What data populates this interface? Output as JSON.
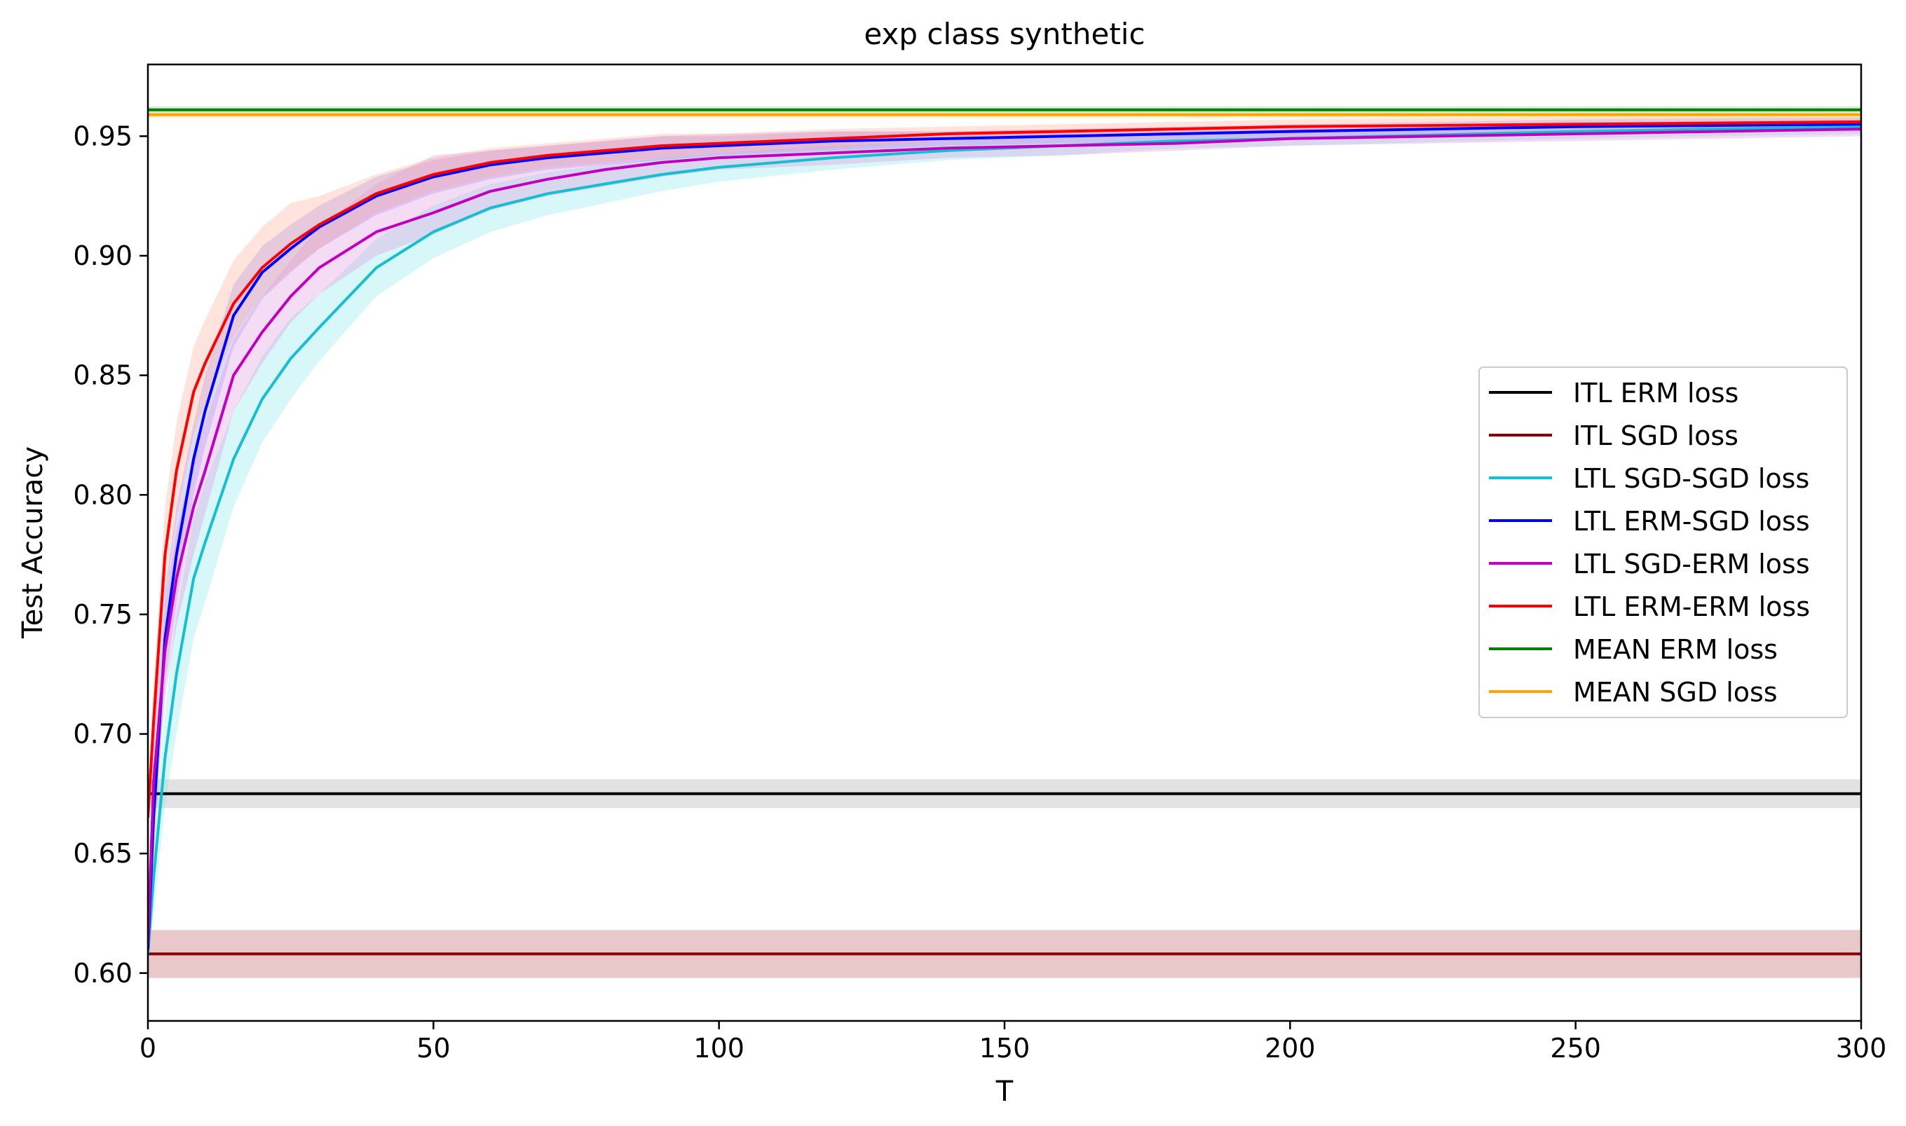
{
  "chart_data": {
    "type": "line",
    "title": "exp class synthetic",
    "xlabel": "T",
    "ylabel": "Test Accuracy",
    "xlim": [
      0,
      300
    ],
    "ylim": [
      0.58,
      0.98
    ],
    "xticks": [
      0,
      50,
      100,
      150,
      200,
      250,
      300
    ],
    "yticks": [
      0.6,
      0.65,
      0.7,
      0.75,
      0.8,
      0.85,
      0.9,
      0.95
    ],
    "xtick_labels": [
      "0",
      "50",
      "100",
      "150",
      "200",
      "250",
      "300"
    ],
    "ytick_labels": [
      "0.60",
      "0.65",
      "0.70",
      "0.75",
      "0.80",
      "0.85",
      "0.90",
      "0.95"
    ],
    "grid": false,
    "legend_position": "center-right",
    "series": [
      {
        "name": "ITL ERM loss",
        "color": "#000000",
        "band_color": "#9e9e9e",
        "x": [
          0,
          300
        ],
        "y": [
          0.675,
          0.675
        ],
        "lower": [
          0.669,
          0.669
        ],
        "upper": [
          0.681,
          0.681
        ]
      },
      {
        "name": "ITL SGD loss",
        "color": "#8b0000",
        "band_color": "#b24a4a",
        "x": [
          0,
          300
        ],
        "y": [
          0.608,
          0.608
        ],
        "lower": [
          0.598,
          0.598
        ],
        "upper": [
          0.618,
          0.618
        ]
      },
      {
        "name": "LTL SGD-SGD loss",
        "color": "#17becf",
        "band_color": "#7fe3ea",
        "x": [
          0,
          1,
          3,
          5,
          8,
          10,
          15,
          20,
          25,
          30,
          40,
          50,
          60,
          70,
          80,
          90,
          100,
          120,
          140,
          160,
          180,
          200,
          250,
          300
        ],
        "y": [
          0.608,
          0.64,
          0.69,
          0.725,
          0.765,
          0.78,
          0.815,
          0.84,
          0.857,
          0.87,
          0.895,
          0.91,
          0.92,
          0.926,
          0.93,
          0.934,
          0.937,
          0.941,
          0.944,
          0.946,
          0.948,
          0.949,
          0.952,
          0.954
        ],
        "lower": [
          0.6,
          0.625,
          0.67,
          0.7,
          0.74,
          0.755,
          0.795,
          0.822,
          0.84,
          0.856,
          0.883,
          0.899,
          0.91,
          0.917,
          0.922,
          0.927,
          0.931,
          0.936,
          0.94,
          0.942,
          0.945,
          0.946,
          0.949,
          0.951
        ],
        "upper": [
          0.616,
          0.655,
          0.71,
          0.75,
          0.79,
          0.805,
          0.835,
          0.858,
          0.874,
          0.884,
          0.907,
          0.921,
          0.93,
          0.935,
          0.938,
          0.941,
          0.943,
          0.946,
          0.948,
          0.95,
          0.951,
          0.952,
          0.955,
          0.957
        ]
      },
      {
        "name": "LTL ERM-SGD loss",
        "color": "#0000ff",
        "band_color": "#8a8aff",
        "x": [
          0,
          1,
          3,
          5,
          8,
          10,
          15,
          20,
          25,
          30,
          40,
          50,
          60,
          70,
          80,
          90,
          100,
          120,
          140,
          160,
          180,
          200,
          250,
          300
        ],
        "y": [
          0.61,
          0.665,
          0.74,
          0.775,
          0.815,
          0.835,
          0.875,
          0.893,
          0.903,
          0.912,
          0.925,
          0.933,
          0.938,
          0.941,
          0.943,
          0.945,
          0.946,
          0.948,
          0.949,
          0.95,
          0.951,
          0.952,
          0.954,
          0.955
        ],
        "lower": [
          0.602,
          0.65,
          0.72,
          0.755,
          0.8,
          0.82,
          0.862,
          0.882,
          0.893,
          0.903,
          0.917,
          0.926,
          0.932,
          0.936,
          0.938,
          0.94,
          0.942,
          0.944,
          0.946,
          0.947,
          0.948,
          0.949,
          0.951,
          0.952
        ],
        "upper": [
          0.618,
          0.68,
          0.76,
          0.795,
          0.83,
          0.85,
          0.888,
          0.904,
          0.913,
          0.921,
          0.933,
          0.94,
          0.944,
          0.946,
          0.948,
          0.95,
          0.95,
          0.952,
          0.952,
          0.953,
          0.954,
          0.955,
          0.957,
          0.958
        ]
      },
      {
        "name": "LTL SGD-ERM loss",
        "color": "#c000c0",
        "band_color": "#d98ad9",
        "x": [
          0,
          1,
          3,
          5,
          8,
          10,
          15,
          20,
          25,
          30,
          40,
          50,
          60,
          70,
          80,
          90,
          100,
          120,
          140,
          160,
          180,
          200,
          250,
          300
        ],
        "y": [
          0.612,
          0.68,
          0.735,
          0.765,
          0.795,
          0.81,
          0.85,
          0.868,
          0.883,
          0.895,
          0.91,
          0.918,
          0.927,
          0.932,
          0.936,
          0.939,
          0.941,
          0.943,
          0.945,
          0.946,
          0.947,
          0.949,
          0.951,
          0.953
        ],
        "lower": [
          0.604,
          0.66,
          0.715,
          0.745,
          0.775,
          0.792,
          0.835,
          0.855,
          0.872,
          0.884,
          0.9,
          0.909,
          0.919,
          0.925,
          0.929,
          0.933,
          0.936,
          0.938,
          0.941,
          0.942,
          0.944,
          0.946,
          0.948,
          0.95
        ],
        "upper": [
          0.62,
          0.7,
          0.755,
          0.785,
          0.815,
          0.83,
          0.865,
          0.883,
          0.898,
          0.912,
          0.93,
          0.942,
          0.944,
          0.946,
          0.948,
          0.95,
          0.951,
          0.952,
          0.952,
          0.953,
          0.953,
          0.954,
          0.956,
          0.957
        ]
      },
      {
        "name": "LTL ERM-ERM loss",
        "color": "#ff0000",
        "band_color": "#ffa38a",
        "x": [
          0,
          1,
          3,
          5,
          8,
          10,
          15,
          20,
          25,
          30,
          40,
          50,
          60,
          70,
          80,
          90,
          100,
          120,
          140,
          160,
          180,
          200,
          250,
          300
        ],
        "y": [
          0.665,
          0.705,
          0.775,
          0.81,
          0.843,
          0.855,
          0.88,
          0.895,
          0.905,
          0.913,
          0.926,
          0.934,
          0.939,
          0.942,
          0.944,
          0.946,
          0.947,
          0.949,
          0.951,
          0.952,
          0.953,
          0.954,
          0.955,
          0.956
        ],
        "lower": [
          0.655,
          0.69,
          0.755,
          0.79,
          0.825,
          0.838,
          0.866,
          0.883,
          0.894,
          0.903,
          0.918,
          0.927,
          0.933,
          0.937,
          0.939,
          0.941,
          0.943,
          0.945,
          0.948,
          0.949,
          0.95,
          0.951,
          0.953,
          0.954
        ],
        "upper": [
          0.675,
          0.72,
          0.795,
          0.83,
          0.862,
          0.873,
          0.898,
          0.912,
          0.922,
          0.925,
          0.934,
          0.941,
          0.945,
          0.947,
          0.949,
          0.951,
          0.951,
          0.953,
          0.954,
          0.955,
          0.956,
          0.957,
          0.958,
          0.958
        ]
      },
      {
        "name": "MEAN ERM loss",
        "color": "#008000",
        "band_color": "#7fbf7f",
        "x": [
          0,
          300
        ],
        "y": [
          0.961,
          0.961
        ],
        "lower": [
          0.9595,
          0.9595
        ],
        "upper": [
          0.9625,
          0.9625
        ]
      },
      {
        "name": "MEAN SGD loss",
        "color": "#ffa500",
        "band_color": "#ffd27f",
        "x": [
          0,
          300
        ],
        "y": [
          0.959,
          0.959
        ],
        "lower": [
          0.9575,
          0.9575
        ],
        "upper": [
          0.9605,
          0.9605
        ]
      }
    ]
  }
}
